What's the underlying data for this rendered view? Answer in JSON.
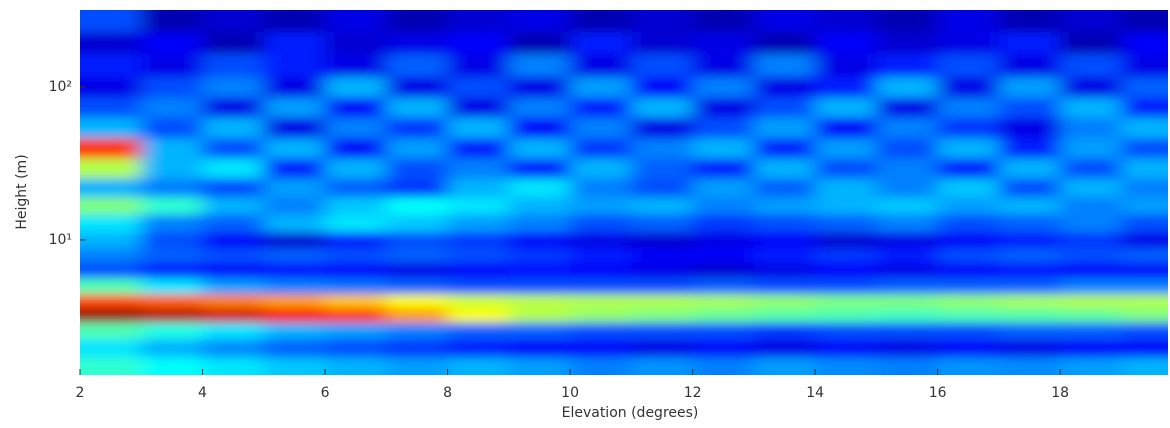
{
  "chart_data": {
    "type": "heatmap",
    "xlabel": "Elevation (degrees)",
    "ylabel": "Height (m)",
    "xlim": [
      2,
      19.76
    ],
    "xticks": [
      2,
      4,
      6,
      8,
      10,
      12,
      14,
      16,
      18
    ],
    "ylim": [
      1.31,
      319
    ],
    "yscale": "log",
    "yticks": [
      {
        "value": 10,
        "label": "10¹"
      },
      {
        "value": 100,
        "label": "10²"
      }
    ],
    "grid": false,
    "colormap": "jet",
    "x": [
      2.5,
      3.5,
      4.5,
      5.5,
      6.5,
      7.5,
      8.5,
      9.5,
      10.5,
      11.5,
      12.5,
      13.5,
      14.5,
      15.5,
      16.5,
      17.5,
      18.5,
      19.5
    ],
    "y": [
      1.5,
      2,
      2.6,
      3.3,
      4,
      5,
      6.5,
      8,
      10,
      13,
      17,
      22,
      30,
      40,
      55,
      75,
      100,
      140,
      200,
      270
    ],
    "z": [
      [
        0.42,
        0.38,
        0.35,
        0.32,
        0.3,
        0.28,
        0.3,
        0.28,
        0.25,
        0.27,
        0.25,
        0.28,
        0.26,
        0.25,
        0.27,
        0.26,
        0.28,
        0.3
      ],
      [
        0.35,
        0.3,
        0.26,
        0.22,
        0.2,
        0.18,
        0.15,
        0.12,
        0.12,
        0.1,
        0.12,
        0.1,
        0.12,
        0.1,
        0.12,
        0.1,
        0.12,
        0.12
      ],
      [
        0.45,
        0.4,
        0.35,
        0.3,
        0.28,
        0.25,
        0.22,
        0.22,
        0.2,
        0.2,
        0.2,
        0.18,
        0.2,
        0.2,
        0.2,
        0.22,
        0.22,
        0.2
      ],
      [
        0.98,
        0.95,
        0.92,
        0.88,
        0.82,
        0.72,
        0.62,
        0.55,
        0.52,
        0.5,
        0.48,
        0.46,
        0.45,
        0.44,
        0.45,
        0.46,
        0.47,
        0.5
      ],
      [
        0.8,
        0.78,
        0.75,
        0.72,
        0.68,
        0.62,
        0.58,
        0.56,
        0.55,
        0.55,
        0.54,
        0.52,
        0.5,
        0.5,
        0.52,
        0.54,
        0.55,
        0.55
      ],
      [
        0.45,
        0.35,
        0.28,
        0.25,
        0.24,
        0.22,
        0.2,
        0.2,
        0.2,
        0.2,
        0.22,
        0.2,
        0.2,
        0.22,
        0.22,
        0.22,
        0.25,
        0.25
      ],
      [
        0.2,
        0.15,
        0.12,
        0.14,
        0.12,
        0.1,
        0.12,
        0.14,
        0.12,
        0.1,
        0.08,
        0.1,
        0.12,
        0.1,
        0.12,
        0.14,
        0.12,
        0.12
      ],
      [
        0.25,
        0.22,
        0.2,
        0.22,
        0.2,
        0.22,
        0.2,
        0.18,
        0.15,
        0.12,
        0.12,
        0.15,
        0.18,
        0.15,
        0.2,
        0.22,
        0.2,
        0.22
      ],
      [
        0.3,
        0.2,
        0.12,
        0.08,
        0.15,
        0.2,
        0.18,
        0.12,
        0.1,
        0.08,
        0.1,
        0.12,
        0.08,
        0.1,
        0.12,
        0.15,
        0.18,
        0.1
      ],
      [
        0.35,
        0.25,
        0.22,
        0.3,
        0.35,
        0.32,
        0.28,
        0.25,
        0.2,
        0.22,
        0.18,
        0.2,
        0.22,
        0.25,
        0.2,
        0.22,
        0.25,
        0.2
      ],
      [
        0.5,
        0.42,
        0.3,
        0.25,
        0.32,
        0.38,
        0.35,
        0.3,
        0.28,
        0.3,
        0.25,
        0.28,
        0.3,
        0.32,
        0.28,
        0.3,
        0.25,
        0.28
      ],
      [
        0.3,
        0.25,
        0.2,
        0.28,
        0.22,
        0.18,
        0.3,
        0.35,
        0.25,
        0.2,
        0.28,
        0.22,
        0.3,
        0.25,
        0.32,
        0.2,
        0.3,
        0.25
      ],
      [
        0.55,
        0.3,
        0.35,
        0.15,
        0.3,
        0.2,
        0.25,
        0.15,
        0.3,
        0.22,
        0.15,
        0.3,
        0.2,
        0.25,
        0.15,
        0.3,
        0.2,
        0.3
      ],
      [
        0.82,
        0.3,
        0.2,
        0.3,
        0.12,
        0.28,
        0.15,
        0.3,
        0.18,
        0.25,
        0.3,
        0.15,
        0.28,
        0.2,
        0.3,
        0.15,
        0.28,
        0.2
      ],
      [
        0.3,
        0.2,
        0.3,
        0.1,
        0.25,
        0.18,
        0.3,
        0.12,
        0.25,
        0.1,
        0.2,
        0.28,
        0.12,
        0.25,
        0.18,
        0.1,
        0.25,
        0.3
      ],
      [
        0.2,
        0.25,
        0.1,
        0.28,
        0.12,
        0.3,
        0.1,
        0.25,
        0.15,
        0.3,
        0.1,
        0.2,
        0.3,
        0.1,
        0.25,
        0.2,
        0.3,
        0.15
      ],
      [
        0.1,
        0.2,
        0.25,
        0.1,
        0.3,
        0.1,
        0.2,
        0.1,
        0.28,
        0.12,
        0.25,
        0.1,
        0.15,
        0.3,
        0.1,
        0.28,
        0.1,
        0.22
      ],
      [
        0.15,
        0.1,
        0.2,
        0.15,
        0.1,
        0.22,
        0.1,
        0.25,
        0.1,
        0.2,
        0.1,
        0.25,
        0.1,
        0.15,
        0.2,
        0.1,
        0.2,
        0.1
      ],
      [
        0.08,
        0.12,
        0.05,
        0.15,
        0.08,
        0.1,
        0.12,
        0.05,
        0.15,
        0.08,
        0.1,
        0.05,
        0.12,
        0.08,
        0.1,
        0.15,
        0.05,
        0.12
      ],
      [
        0.2,
        0.05,
        0.08,
        0.05,
        0.1,
        0.05,
        0.08,
        0.1,
        0.05,
        0.08,
        0.05,
        0.1,
        0.08,
        0.05,
        0.1,
        0.05,
        0.08,
        0.05
      ]
    ]
  }
}
